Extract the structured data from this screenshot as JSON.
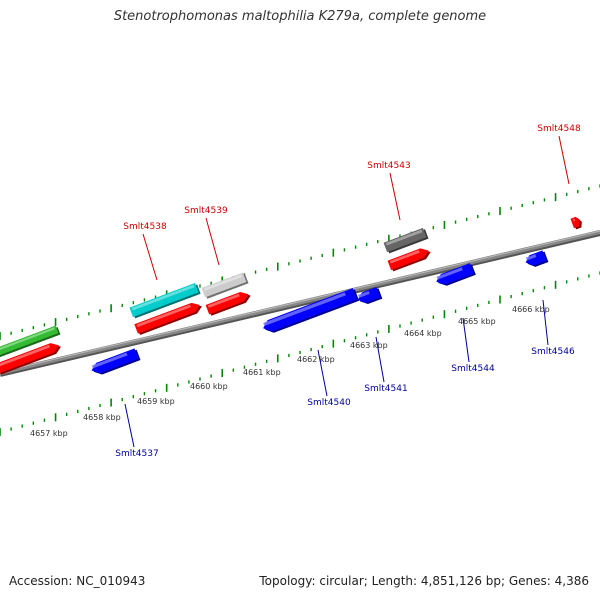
{
  "title": "Stenotrophomonas maltophilia K279a, complete genome",
  "footer": {
    "accession": "Accession: NC_010943",
    "summary": "Topology: circular; Length: 4,851,126 bp; Genes: 4,386"
  },
  "colors": {
    "forward_label": "#cc0000",
    "reverse_label": "#000099",
    "cds": "#ff0000",
    "reverse_cds": "#0000ff",
    "rrna": "#00cccc",
    "light_feature": "#cccccc",
    "dark_feature": "#666666",
    "green_feature": "#33bb33",
    "backbone": "#888888",
    "tick": "#008800"
  },
  "kbp_ticks": [
    "4657 kbp",
    "4658 kbp",
    "4659 kbp",
    "4660 kbp",
    "4661 kbp",
    "4662 kbp",
    "4663 kbp",
    "4664 kbp",
    "4665 kbp",
    "4666 kbp"
  ],
  "forward_labels": [
    "Smlt4538",
    "Smlt4539",
    "Smlt4543",
    "Smlt4548"
  ],
  "reverse_labels": [
    "Smlt4537",
    "Smlt4540",
    "Smlt4541",
    "Smlt4544",
    "Smlt4546"
  ]
}
